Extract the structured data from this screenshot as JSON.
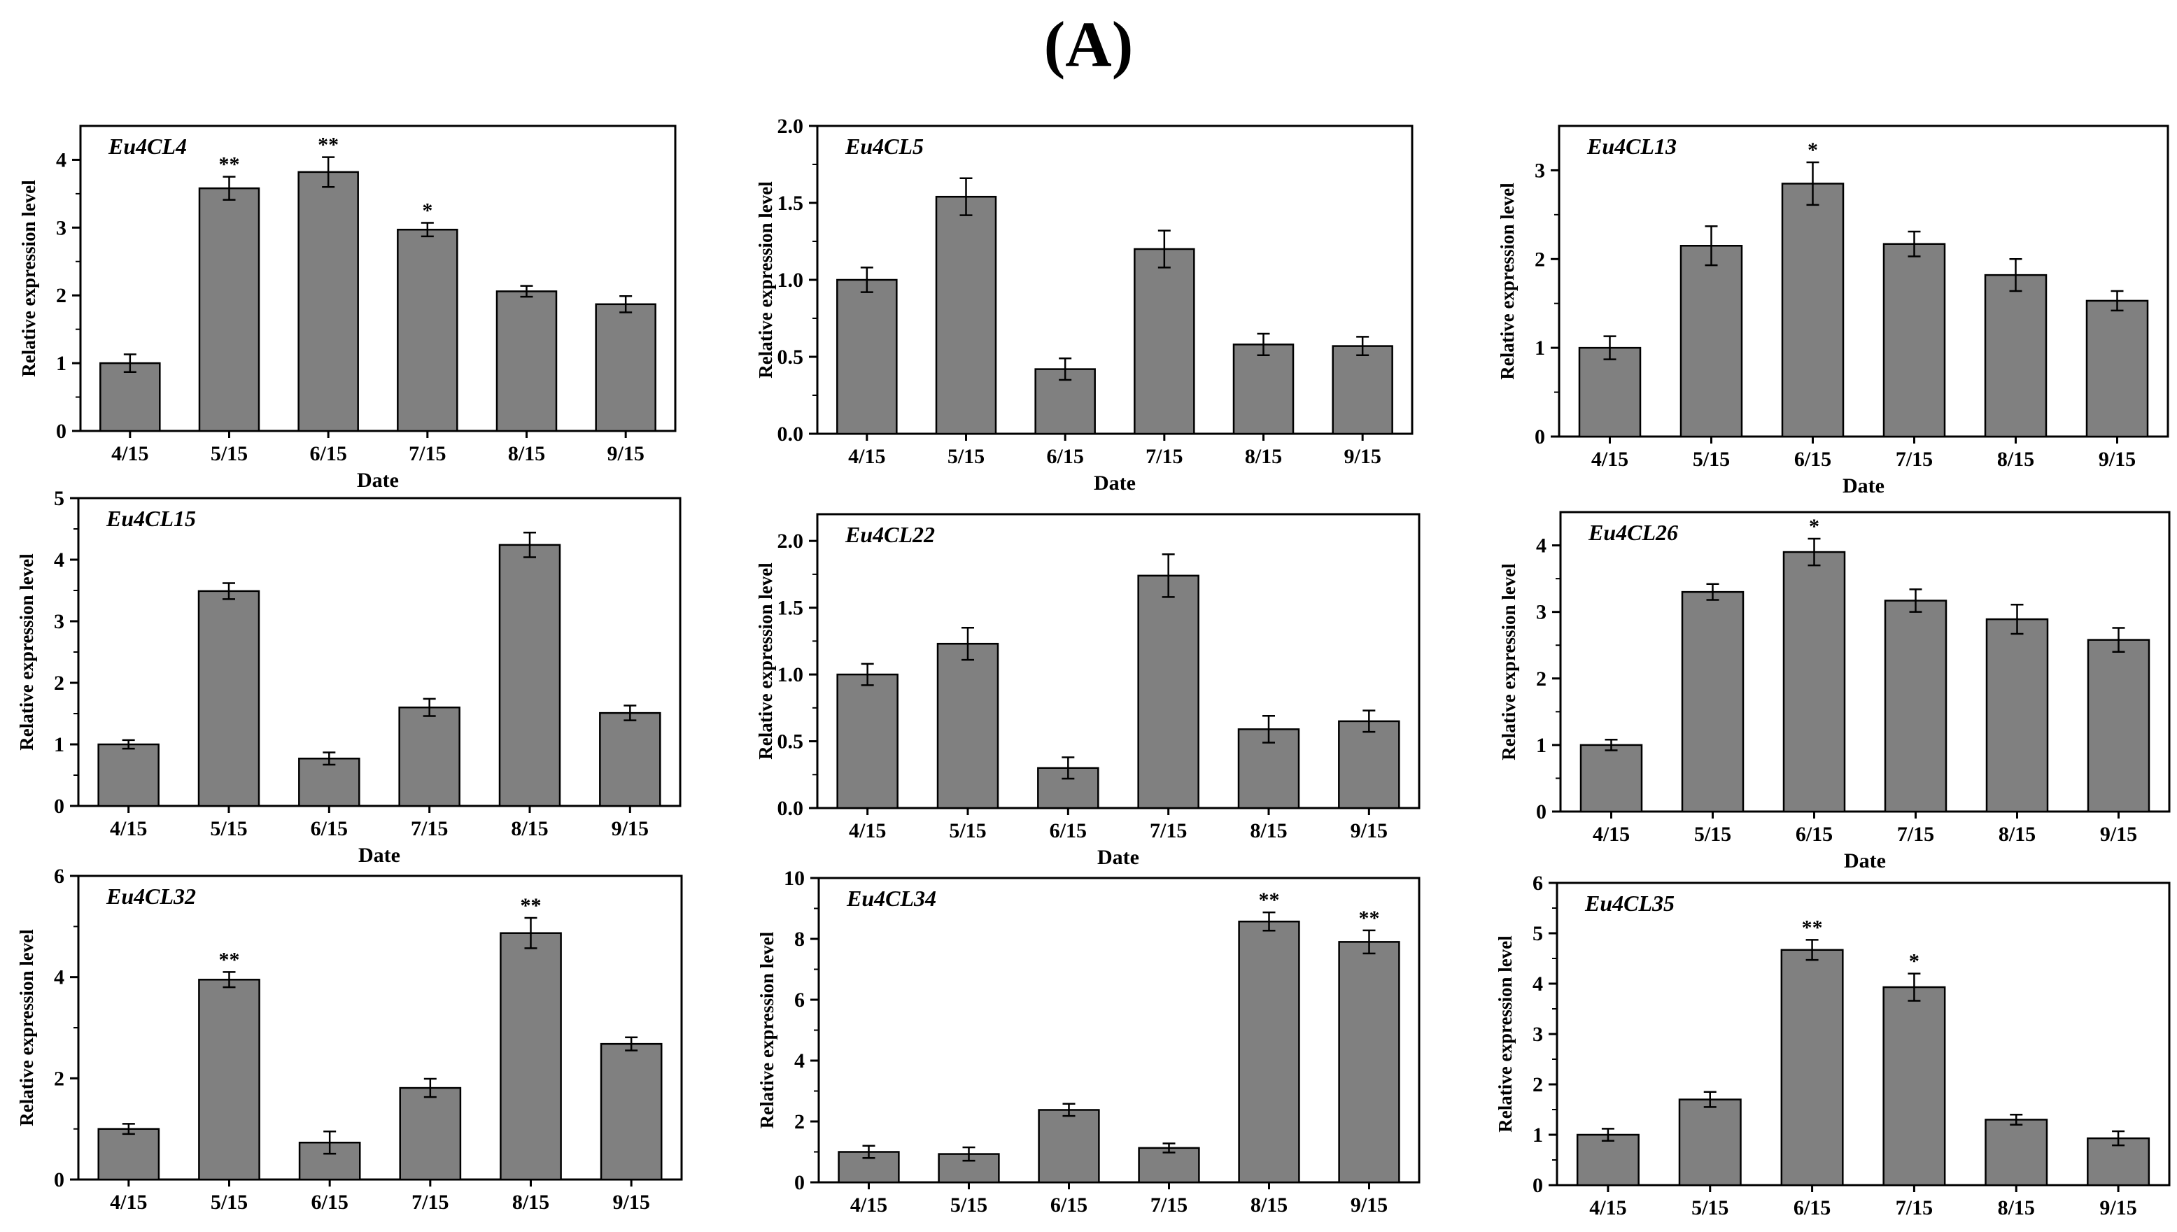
{
  "figure_title": "(A)",
  "chart_data": [
    {
      "type": "bar",
      "title": "Eu4CL4",
      "xlabel": "Date",
      "ylabel": "Relative expression level",
      "categories": [
        "4/15",
        "5/15",
        "6/15",
        "7/15",
        "8/15",
        "9/15"
      ],
      "values": [
        1.0,
        3.58,
        3.82,
        2.97,
        2.06,
        1.87
      ],
      "errors": [
        0.13,
        0.17,
        0.22,
        0.1,
        0.08,
        0.12
      ],
      "significance": [
        "",
        "**",
        "**",
        "*",
        "",
        ""
      ],
      "ylim": [
        0,
        4.5
      ],
      "yticks": [
        0,
        1,
        2,
        3,
        4
      ],
      "tick_decimals": 0
    },
    {
      "type": "bar",
      "title": "Eu4CL5",
      "xlabel": "Date",
      "ylabel": "Relative expression level",
      "categories": [
        "4/15",
        "5/15",
        "6/15",
        "7/15",
        "8/15",
        "9/15"
      ],
      "values": [
        1.0,
        1.54,
        0.42,
        1.2,
        0.58,
        0.57
      ],
      "errors": [
        0.08,
        0.12,
        0.07,
        0.12,
        0.07,
        0.06
      ],
      "significance": [
        "",
        "",
        "",
        "",
        "",
        ""
      ],
      "ylim": [
        0,
        2.0
      ],
      "yticks": [
        0,
        0.5,
        1,
        1.5,
        2
      ],
      "tick_decimals": 1
    },
    {
      "type": "bar",
      "title": "Eu4CL13",
      "xlabel": "Date",
      "ylabel": "Relative expression level",
      "categories": [
        "4/15",
        "5/15",
        "6/15",
        "7/15",
        "8/15",
        "9/15"
      ],
      "values": [
        1.0,
        2.15,
        2.85,
        2.17,
        1.82,
        1.53
      ],
      "errors": [
        0.13,
        0.22,
        0.24,
        0.14,
        0.18,
        0.11
      ],
      "significance": [
        "",
        "",
        "*",
        "",
        "",
        ""
      ],
      "ylim": [
        0,
        3.5
      ],
      "yticks": [
        0,
        1,
        2,
        3
      ],
      "tick_decimals": 0
    },
    {
      "type": "bar",
      "title": "Eu4CL15",
      "xlabel": "Date",
      "ylabel": "Relative expression level",
      "categories": [
        "4/15",
        "5/15",
        "6/15",
        "7/15",
        "8/15",
        "9/15"
      ],
      "values": [
        1.0,
        3.49,
        0.77,
        1.6,
        4.24,
        1.51
      ],
      "errors": [
        0.07,
        0.13,
        0.1,
        0.14,
        0.2,
        0.12
      ],
      "significance": [
        "",
        "",
        "",
        "",
        "",
        ""
      ],
      "ylim": [
        0,
        5
      ],
      "yticks": [
        0,
        1,
        2,
        3,
        4,
        5
      ],
      "tick_decimals": 0
    },
    {
      "type": "bar",
      "title": "Eu4CL22",
      "xlabel": "Date",
      "ylabel": "Relative expression level",
      "categories": [
        "4/15",
        "5/15",
        "6/15",
        "7/15",
        "8/15",
        "9/15"
      ],
      "values": [
        1.0,
        1.23,
        0.3,
        1.74,
        0.59,
        0.65
      ],
      "errors": [
        0.08,
        0.12,
        0.08,
        0.16,
        0.1,
        0.08
      ],
      "significance": [
        "",
        "",
        "",
        "",
        "",
        ""
      ],
      "ylim": [
        0,
        2.2
      ],
      "yticks": [
        0,
        0.5,
        1,
        1.5,
        2
      ],
      "tick_decimals": 1
    },
    {
      "type": "bar",
      "title": "Eu4CL26",
      "xlabel": "Date",
      "ylabel": "Relative expression level",
      "categories": [
        "4/15",
        "5/15",
        "6/15",
        "7/15",
        "8/15",
        "9/15"
      ],
      "values": [
        1.0,
        3.3,
        3.9,
        3.17,
        2.89,
        2.58
      ],
      "errors": [
        0.08,
        0.12,
        0.2,
        0.17,
        0.22,
        0.18
      ],
      "significance": [
        "",
        "",
        "*",
        "",
        "",
        ""
      ],
      "ylim": [
        0,
        4.5
      ],
      "yticks": [
        0,
        1,
        2,
        3,
        4
      ],
      "tick_decimals": 0
    },
    {
      "type": "bar",
      "title": "Eu4CL32",
      "xlabel": "",
      "ylabel": "Relative expression level",
      "categories": [
        "4/15",
        "5/15",
        "6/15",
        "7/15",
        "8/15",
        "9/15"
      ],
      "values": [
        1.0,
        3.95,
        0.73,
        1.81,
        4.87,
        2.68
      ],
      "errors": [
        0.1,
        0.15,
        0.22,
        0.18,
        0.3,
        0.13
      ],
      "significance": [
        "",
        "**",
        "",
        "",
        "**",
        ""
      ],
      "ylim": [
        0,
        6
      ],
      "yticks": [
        0,
        2,
        4,
        6
      ],
      "tick_decimals": 0
    },
    {
      "type": "bar",
      "title": "Eu4CL34",
      "xlabel": "",
      "ylabel": "Relative expression level",
      "categories": [
        "4/15",
        "5/15",
        "6/15",
        "7/15",
        "8/15",
        "9/15"
      ],
      "values": [
        1.0,
        0.93,
        2.38,
        1.13,
        8.57,
        7.9
      ],
      "errors": [
        0.2,
        0.22,
        0.2,
        0.15,
        0.3,
        0.38
      ],
      "significance": [
        "",
        "",
        "",
        "",
        "**",
        "**"
      ],
      "ylim": [
        0,
        10
      ],
      "yticks": [
        0,
        2,
        4,
        6,
        8,
        10
      ],
      "tick_decimals": 0
    },
    {
      "type": "bar",
      "title": "Eu4CL35",
      "xlabel": "",
      "ylabel": "Relative expression level",
      "categories": [
        "4/15",
        "5/15",
        "6/15",
        "7/15",
        "8/15",
        "9/15"
      ],
      "values": [
        1.0,
        1.7,
        4.67,
        3.93,
        1.3,
        0.93
      ],
      "errors": [
        0.12,
        0.15,
        0.2,
        0.27,
        0.1,
        0.14
      ],
      "significance": [
        "",
        "",
        "**",
        "*",
        "",
        ""
      ],
      "ylim": [
        0,
        6
      ],
      "yticks": [
        0,
        1,
        2,
        3,
        4,
        5,
        6
      ],
      "tick_decimals": 0
    }
  ]
}
